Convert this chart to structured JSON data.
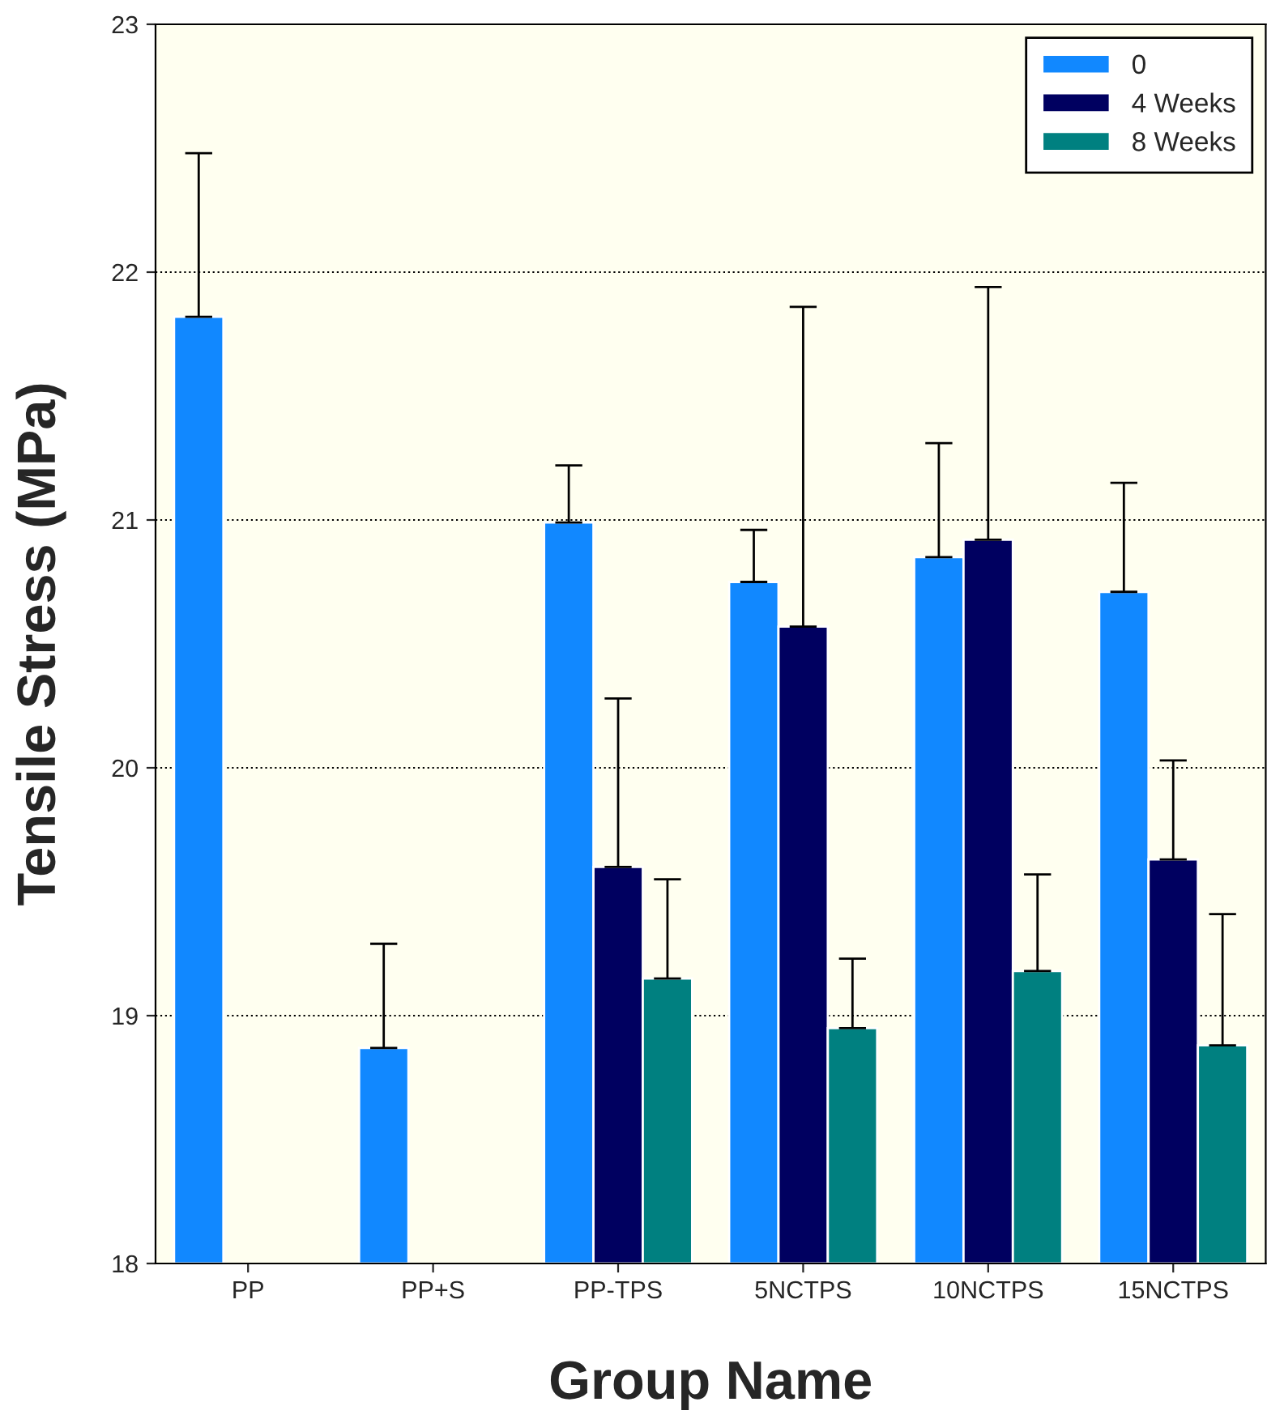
{
  "chart_data": {
    "type": "bar",
    "xlabel": "Group Name",
    "ylabel": "Tensile Stress (MPa)",
    "categories": [
      "PP",
      "PP+S",
      "PP-TPS",
      "5NCTPS",
      "10NCTPS",
      "15NCTPS"
    ],
    "series": [
      {
        "name": "0",
        "color": "#1188ff",
        "values": [
          21.82,
          18.87,
          20.99,
          20.75,
          20.85,
          20.71
        ],
        "errors": [
          [
            21.82,
            22.48
          ],
          [
            18.87,
            19.29
          ],
          [
            20.99,
            21.22
          ],
          [
            20.75,
            20.96
          ],
          [
            20.85,
            21.31
          ],
          [
            20.71,
            21.15
          ]
        ]
      },
      {
        "name": "4 Weeks",
        "color": "#000060",
        "values": [
          null,
          null,
          19.6,
          20.57,
          20.92,
          19.63
        ],
        "errors": [
          null,
          null,
          [
            19.6,
            20.28
          ],
          [
            20.57,
            21.86
          ],
          [
            20.92,
            21.94
          ],
          [
            19.63,
            20.03
          ]
        ]
      },
      {
        "name": "8 Weeks",
        "color": "#008080",
        "values": [
          null,
          null,
          19.15,
          18.95,
          19.18,
          18.88
        ],
        "errors": [
          null,
          null,
          [
            19.15,
            19.55
          ],
          [
            18.95,
            19.23
          ],
          [
            19.18,
            19.57
          ],
          [
            18.88,
            19.41
          ]
        ]
      }
    ],
    "ylim": [
      18,
      23
    ],
    "yticks": [
      18,
      19,
      20,
      21,
      22,
      23
    ],
    "grid": "y",
    "legend": "top right"
  }
}
